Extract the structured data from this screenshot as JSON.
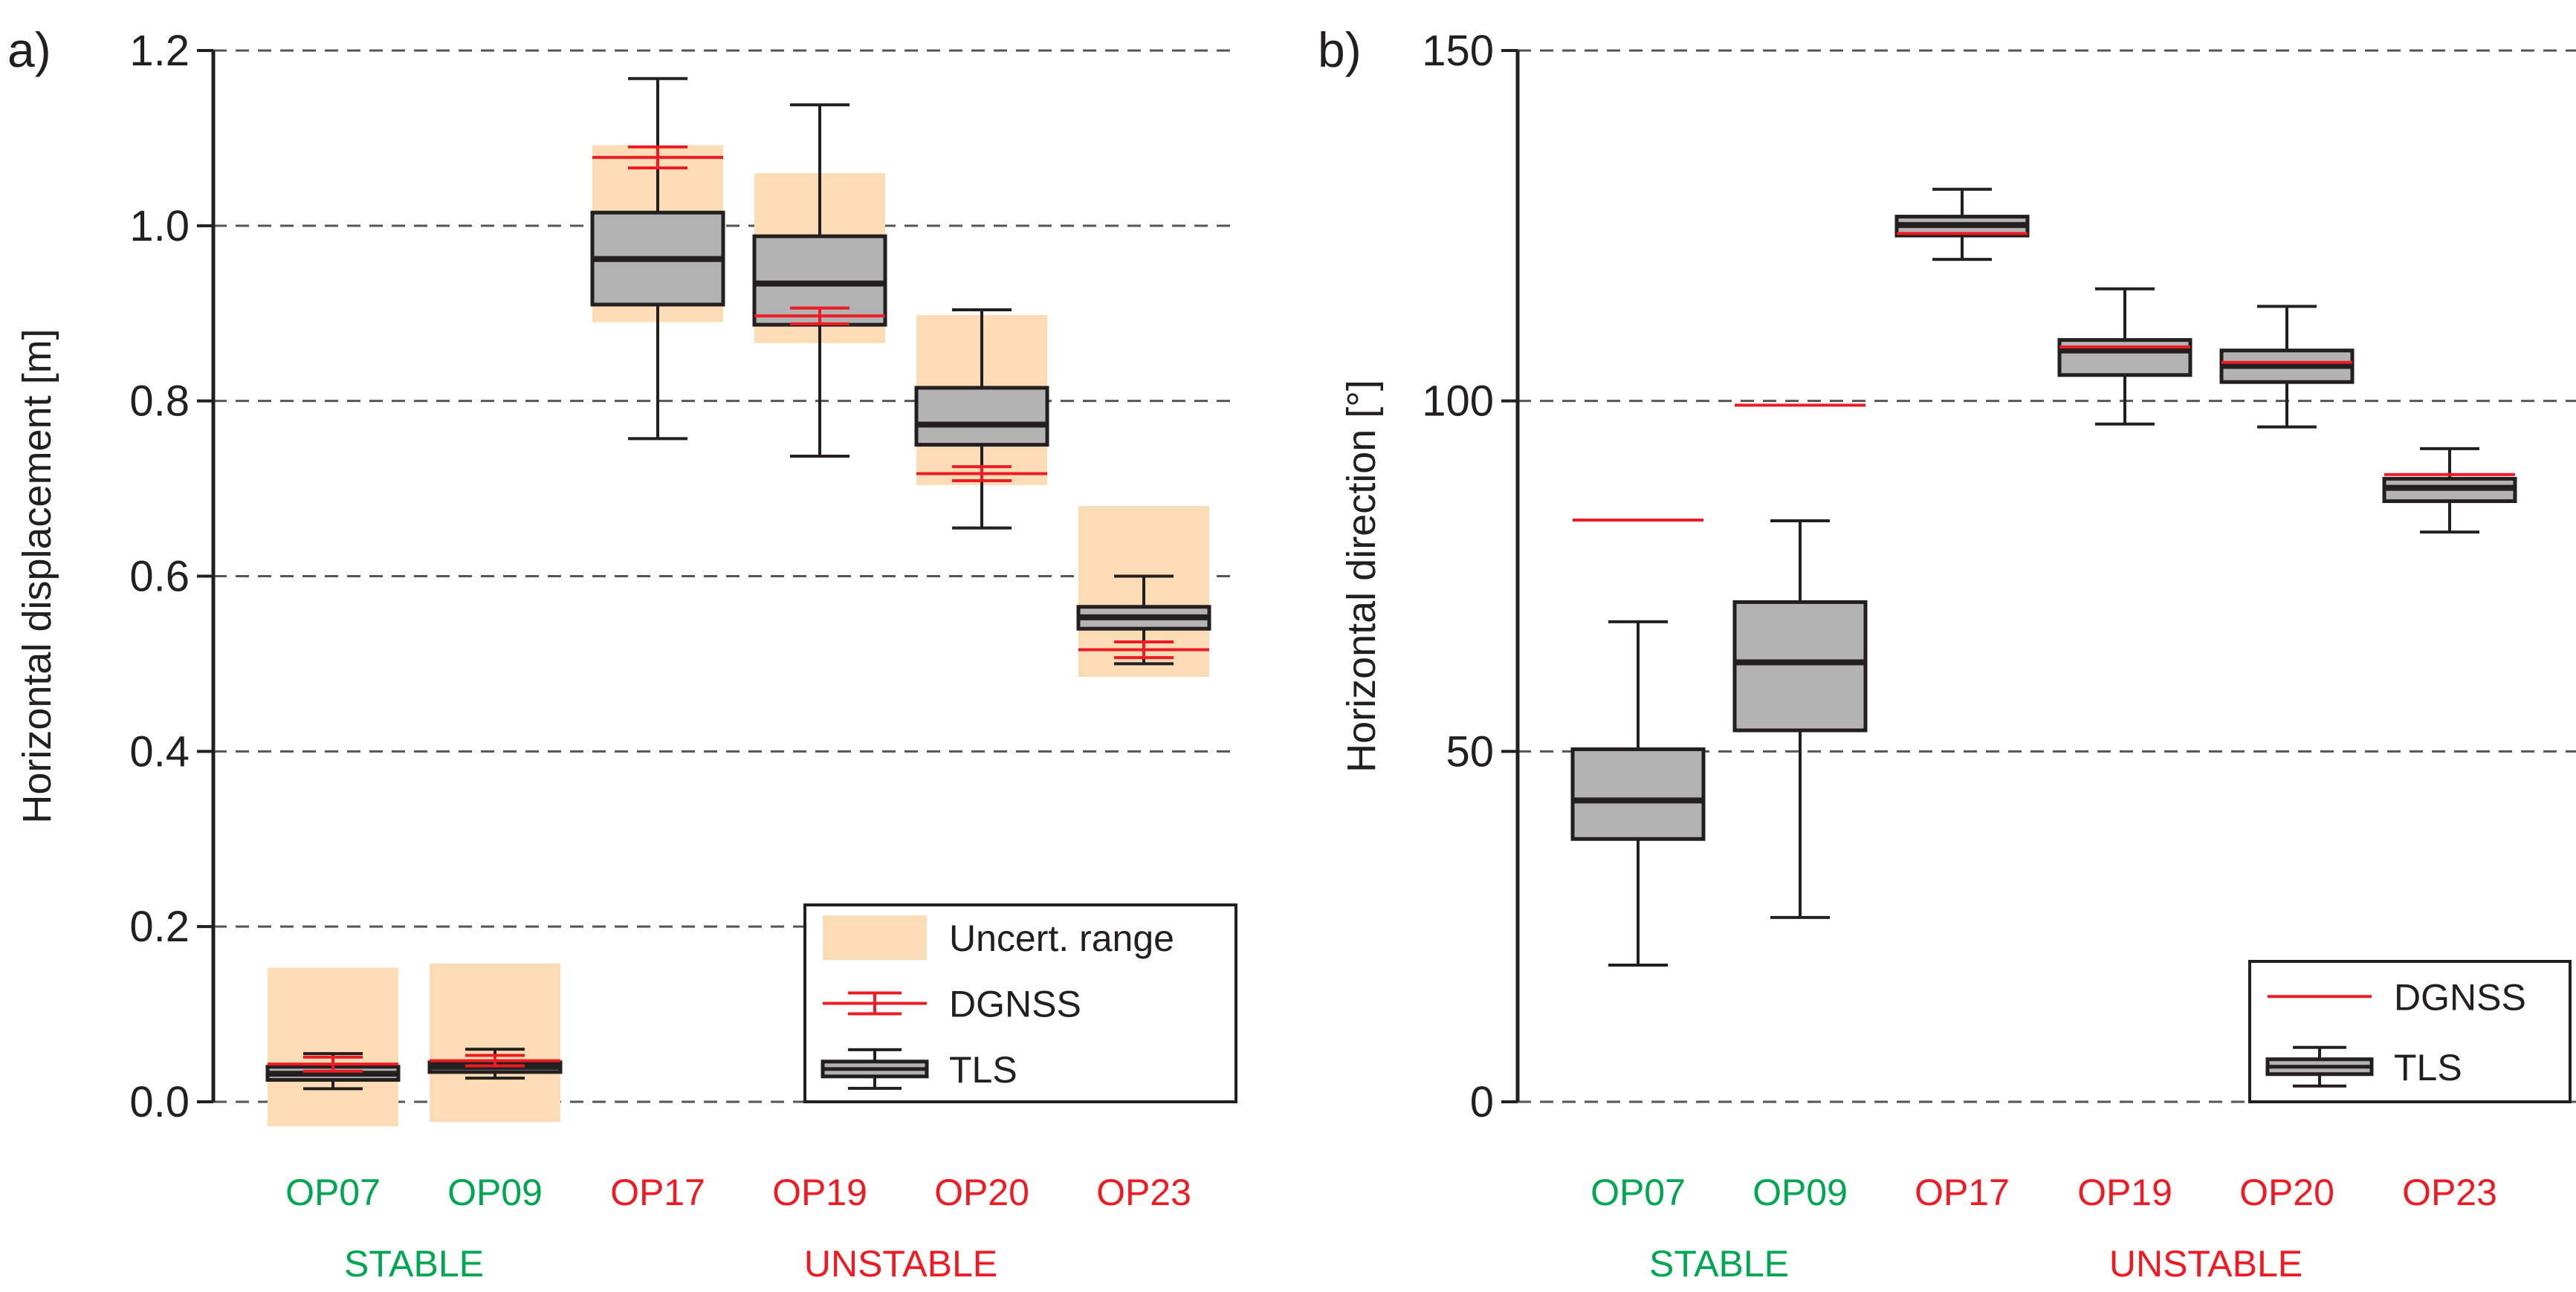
{
  "colors": {
    "stable": "#00a651",
    "unstable": "#ed1c24",
    "uncert": "#fcdcb4",
    "box": "#b3b3b3",
    "dgnss": "#ed1c24",
    "ink": "#231f20"
  },
  "chart_data": [
    {
      "type": "box",
      "panel_label": "a)",
      "ylabel": "Horizontal displacement [m]",
      "ylim": [
        0,
        1.2
      ],
      "yticks": [
        0.0,
        0.2,
        0.4,
        0.6,
        0.8,
        1.0,
        1.2
      ],
      "ytick_labels": [
        "0.0",
        "0.2",
        "0.4",
        "0.6",
        "0.8",
        "1.0",
        "1.2"
      ],
      "grid": "dashed horizontal",
      "categories": [
        "OP07",
        "OP09",
        "OP17",
        "OP19",
        "OP20",
        "OP23"
      ],
      "category_status": [
        "stable",
        "stable",
        "unstable",
        "unstable",
        "unstable",
        "unstable"
      ],
      "groups": [
        {
          "label": "STABLE",
          "status": "stable",
          "from": 0,
          "to": 1
        },
        {
          "label": "UNSTABLE",
          "status": "unstable",
          "from": 2,
          "to": 5
        }
      ],
      "legend": {
        "position": "bottom-right",
        "entries": [
          "Uncert. range",
          "DGNSS",
          "TLS"
        ]
      },
      "tls": [
        {
          "whisker_low": 0.015,
          "q1": 0.025,
          "median": 0.032,
          "q3": 0.04,
          "whisker_high": 0.055
        },
        {
          "whisker_low": 0.027,
          "q1": 0.034,
          "median": 0.04,
          "q3": 0.045,
          "whisker_high": 0.06
        },
        {
          "whisker_low": 0.757,
          "q1": 0.91,
          "median": 0.962,
          "q3": 1.015,
          "whisker_high": 1.168
        },
        {
          "whisker_low": 0.737,
          "q1": 0.887,
          "median": 0.934,
          "q3": 0.988,
          "whisker_high": 1.138
        },
        {
          "whisker_low": 0.655,
          "q1": 0.75,
          "median": 0.773,
          "q3": 0.815,
          "whisker_high": 0.904
        },
        {
          "whisker_low": 0.5,
          "q1": 0.54,
          "median": 0.553,
          "q3": 0.565,
          "whisker_high": 0.6
        }
      ],
      "dgnss": [
        {
          "value": 0.043,
          "error": 0.008
        },
        {
          "value": 0.047,
          "error": 0.006
        },
        {
          "value": 1.078,
          "error": 0.012
        },
        {
          "value": 0.897,
          "error": 0.009
        },
        {
          "value": 0.717,
          "error": 0.008
        },
        {
          "value": 0.516,
          "error": 0.009
        }
      ],
      "uncert_range": [
        [
          -0.028,
          0.153
        ],
        [
          -0.023,
          0.158
        ],
        [
          0.89,
          1.092
        ],
        [
          0.866,
          1.06
        ],
        [
          0.704,
          0.898
        ],
        [
          0.485,
          0.68
        ]
      ]
    },
    {
      "type": "box",
      "panel_label": "b)",
      "ylabel": "Horizontal direction [°]",
      "ylim": [
        0,
        150
      ],
      "yticks": [
        0,
        50,
        100,
        150
      ],
      "ytick_labels": [
        "0",
        "50",
        "100",
        "150"
      ],
      "grid": "dashed horizontal",
      "categories": [
        "OP07",
        "OP09",
        "OP17",
        "OP19",
        "OP20",
        "OP23"
      ],
      "category_status": [
        "stable",
        "stable",
        "unstable",
        "unstable",
        "unstable",
        "unstable"
      ],
      "groups": [
        {
          "label": "STABLE",
          "status": "stable",
          "from": 0,
          "to": 1
        },
        {
          "label": "UNSTABLE",
          "status": "unstable",
          "from": 2,
          "to": 5
        }
      ],
      "legend": {
        "position": "bottom-right",
        "entries": [
          "DGNSS",
          "TLS"
        ]
      },
      "tls": [
        {
          "whisker_low": 19.5,
          "q1": 37.5,
          "median": 43,
          "q3": 50.3,
          "whisker_high": 68.5
        },
        {
          "whisker_low": 26.3,
          "q1": 53,
          "median": 62.7,
          "q3": 71.3,
          "whisker_high": 82.9
        },
        {
          "whisker_low": 120.2,
          "q1": 123.6,
          "median": 125.1,
          "q3": 126.3,
          "whisker_high": 130.2
        },
        {
          "whisker_low": 96.7,
          "q1": 103.7,
          "median": 107.2,
          "q3": 108.7,
          "whisker_high": 116
        },
        {
          "whisker_low": 96.3,
          "q1": 102.7,
          "median": 105,
          "q3": 107.2,
          "whisker_high": 113.5
        },
        {
          "whisker_low": 81.3,
          "q1": 85.7,
          "median": 87.6,
          "q3": 88.9,
          "whisker_high": 93.2
        }
      ],
      "dgnss": [
        {
          "value": 83
        },
        {
          "value": 99.4
        },
        {
          "value": 123.9
        },
        {
          "value": 107.7
        },
        {
          "value": 105.5
        },
        {
          "value": 89.5
        }
      ]
    }
  ]
}
